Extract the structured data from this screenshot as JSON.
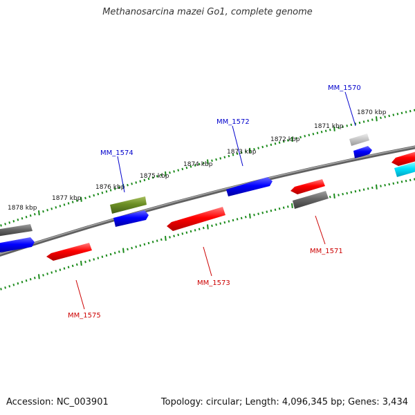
{
  "title": "Methanosarcina mazei Go1, complete genome",
  "footer": {
    "accession": "Accession: NC_003901",
    "stats": "Topology: circular; Length: 4,096,345 bp; Genes: 3,434"
  },
  "ticks": [
    "1878 kbp",
    "1877 kbp",
    "1876 kbp",
    "1875 kbp",
    "1874 kbp",
    "1873 kbp",
    "1872 kbp",
    "1871 kbp",
    "1870 kbp"
  ],
  "gene_labels": [
    {
      "text": "MM_1570",
      "color": "#0000cc"
    },
    {
      "text": "MM_1572",
      "color": "#0000cc"
    },
    {
      "text": "MM_1574",
      "color": "#0000cc"
    },
    {
      "text": "MM_1571",
      "color": "#cc0000"
    },
    {
      "text": "MM_1573",
      "color": "#cc0000"
    },
    {
      "text": "MM_1575",
      "color": "#cc0000"
    }
  ],
  "colors": {
    "forward": "#0000ff",
    "reverse": "#ff0000",
    "gray": "#666666",
    "light_gray": "#c8c8c8",
    "olive": "#6b8e23",
    "cyan": "#00e5ff",
    "tick": "#1a8a1a",
    "backbone": "#808080"
  }
}
